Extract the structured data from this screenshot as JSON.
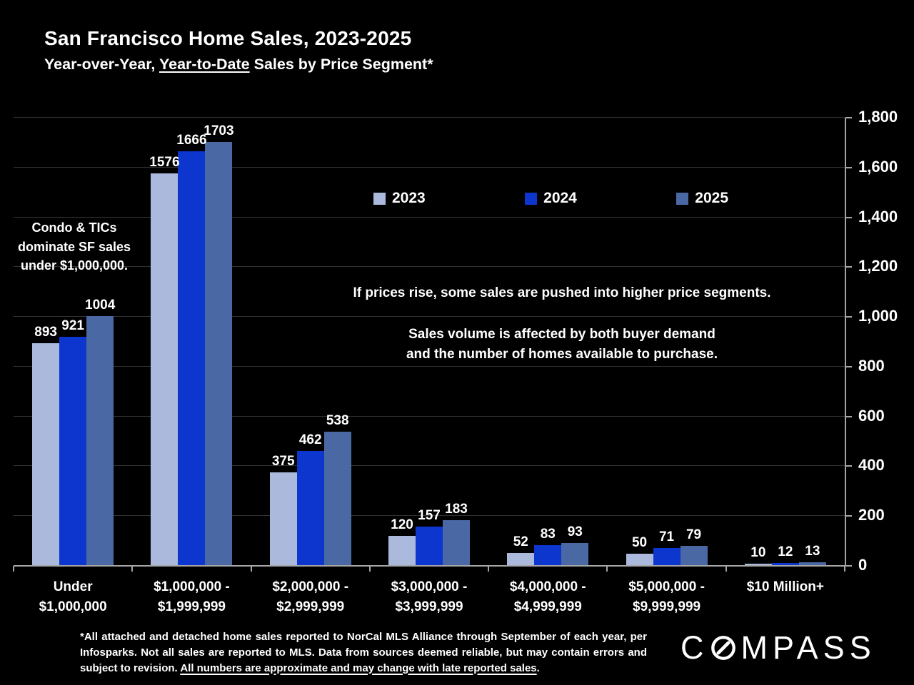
{
  "header": {
    "title": "San Francisco Home Sales, 2023-2025",
    "subtitle_prefix": "Year-over-Year, ",
    "subtitle_underlined": "Year-to-Date",
    "subtitle_suffix": " Sales by Price Segment*"
  },
  "annotations": {
    "left": "Condo & TICs\ndominate SF sales\nunder $1,000,000.",
    "middle_top": "If prices rise, some sales are pushed into higher price segments.",
    "middle_bottom": "Sales volume is affected by both buyer demand\nand the number of homes available to purchase."
  },
  "footer": {
    "note_prefix": "*All attached and detached home sales reported to NorCal MLS Alliance through September of each year, per Infosparks. Not all sales are reported to MLS. Data from sources deemed reliable, but may contain errors and subject to revision. ",
    "note_underlined": "All numbers are approximate and may change with late reported sales",
    "note_suffix": ".",
    "logo": "COMPASS"
  },
  "colors": {
    "background": "#000000",
    "text": "#ffffff",
    "gridline": "#323232",
    "axis": "#a6a6a6",
    "series_2023": "#aab9dc",
    "series_2024": "#0d36cf",
    "series_2025": "#4a69a4"
  },
  "chart_data": {
    "type": "bar",
    "title": "San Francisco Home Sales, 2023-2025",
    "xlabel": "",
    "ylabel": "",
    "ylim": [
      0,
      1800
    ],
    "grid": true,
    "axis_side": "right",
    "legend_position": "top-center",
    "categories": [
      [
        "Under",
        "$1,000,000"
      ],
      [
        "$1,000,000 -",
        "$1,999,999"
      ],
      [
        "$2,000,000 -",
        "$2,999,999"
      ],
      [
        "$3,000,000 -",
        "$3,999,999"
      ],
      [
        "$4,000,000 -",
        "$4,999,999"
      ],
      [
        "$5,000,000 -",
        "$9,999,999"
      ],
      [
        "$10 Million+"
      ]
    ],
    "series": [
      {
        "name": "2023",
        "color": "#aab9dc",
        "values": [
          893,
          1576,
          375,
          120,
          52,
          50,
          10
        ]
      },
      {
        "name": "2024",
        "color": "#0d36cf",
        "values": [
          921,
          1666,
          462,
          157,
          83,
          71,
          12
        ]
      },
      {
        "name": "2025",
        "color": "#4a69a4",
        "values": [
          1004,
          1703,
          538,
          183,
          93,
          79,
          13
        ]
      }
    ],
    "yticks": [
      {
        "v": 0,
        "label": "0"
      },
      {
        "v": 200,
        "label": "200"
      },
      {
        "v": 400,
        "label": "400"
      },
      {
        "v": 600,
        "label": "600"
      },
      {
        "v": 800,
        "label": "800"
      },
      {
        "v": 1000,
        "label": "1,000"
      },
      {
        "v": 1200,
        "label": "1,200"
      },
      {
        "v": 1400,
        "label": "1,400"
      },
      {
        "v": 1600,
        "label": "1,600"
      },
      {
        "v": 1800,
        "label": "1,800"
      }
    ]
  }
}
